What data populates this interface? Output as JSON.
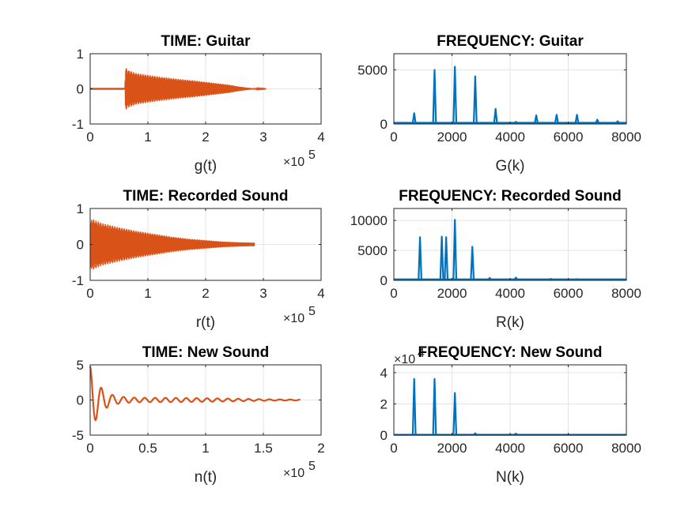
{
  "chart_data": [
    {
      "type": "area",
      "signal": "decaying-oscillation",
      "title": "TIME: Guitar",
      "xlabel": "g(t)",
      "ylabel": "",
      "xlim": [
        0,
        400000
      ],
      "ylim": [
        -1,
        1
      ],
      "xticks": [
        0,
        1,
        2,
        3,
        4
      ],
      "xticklabels": [
        "0",
        "1",
        "2",
        "3",
        "4"
      ],
      "xexponent": "×10",
      "xexponent_power": "5",
      "yticks": [
        -1,
        0,
        1
      ],
      "yticklabels": [
        "-1",
        "0",
        "1"
      ],
      "grid": true,
      "color": "#d95319",
      "envelope": {
        "x": [
          0,
          60000,
          61000,
          64000,
          80000,
          100000,
          120000,
          150000,
          180000,
          210000,
          240000,
          260000,
          280000,
          300000,
          305000
        ],
        "y": [
          0.01,
          0.01,
          0.65,
          0.55,
          0.45,
          0.4,
          0.35,
          0.29,
          0.24,
          0.18,
          0.12,
          0.06,
          0.02,
          0.01,
          0.005
        ]
      }
    },
    {
      "type": "line",
      "signal": "spectrum",
      "title": "FREQUENCY: Guitar",
      "xlabel": "G(k)",
      "ylabel": "",
      "xlim": [
        0,
        8000
      ],
      "ylim": [
        0,
        6500
      ],
      "xticks": [
        0,
        2000,
        4000,
        6000,
        8000
      ],
      "xticklabels": [
        "0",
        "2000",
        "4000",
        "6000",
        "8000"
      ],
      "yticks": [
        0,
        5000
      ],
      "yticklabels": [
        "0",
        "5000"
      ],
      "grid": true,
      "color": "#0072bd",
      "baseline": 100,
      "peaks": {
        "x": [
          700,
          1400,
          2100,
          2800,
          3500,
          4200,
          4900,
          5600,
          6300,
          7000,
          7700
        ],
        "y": [
          1000,
          5000,
          5300,
          4400,
          1400,
          200,
          800,
          850,
          850,
          400,
          250
        ]
      }
    },
    {
      "type": "area",
      "signal": "decaying-oscillation",
      "title": "TIME: Recorded Sound",
      "xlabel": "r(t)",
      "ylabel": "",
      "xlim": [
        0,
        400000
      ],
      "ylim": [
        -1,
        1
      ],
      "xticks": [
        0,
        1,
        2,
        3,
        4
      ],
      "xticklabels": [
        "0",
        "1",
        "2",
        "3",
        "4"
      ],
      "xexponent": "×10",
      "xexponent_power": "5",
      "yticks": [
        -1,
        0,
        1
      ],
      "yticklabels": [
        "-1",
        "0",
        "1"
      ],
      "grid": true,
      "color": "#d95319",
      "envelope": {
        "x": [
          0,
          3000,
          20000,
          50000,
          80000,
          110000,
          140000,
          170000,
          200000,
          230000,
          260000,
          285000
        ],
        "y": [
          0.6,
          0.72,
          0.6,
          0.48,
          0.38,
          0.3,
          0.22,
          0.16,
          0.12,
          0.08,
          0.06,
          0.05
        ]
      }
    },
    {
      "type": "line",
      "signal": "spectrum",
      "title": "FREQUENCY: Recorded Sound",
      "xlabel": "R(k)",
      "ylabel": "",
      "xlim": [
        0,
        8000
      ],
      "ylim": [
        0,
        12000
      ],
      "xticks": [
        0,
        2000,
        4000,
        6000,
        8000
      ],
      "xticklabels": [
        "0",
        "2000",
        "4000",
        "6000",
        "8000"
      ],
      "yticks": [
        0,
        5000,
        10000
      ],
      "yticklabels": [
        "0",
        "5000",
        "10000"
      ],
      "grid": true,
      "color": "#0072bd",
      "baseline": 150,
      "peaks": {
        "x": [
          900,
          1650,
          1800,
          2100,
          2700,
          3300,
          4200,
          5400,
          6300
        ],
        "y": [
          7200,
          7300,
          7200,
          10100,
          5600,
          400,
          450,
          250,
          200
        ]
      }
    },
    {
      "type": "line",
      "signal": "damped-oscillation",
      "title": "TIME: New Sound",
      "xlabel": "n(t)",
      "ylabel": "",
      "xlim": [
        0,
        200000
      ],
      "ylim": [
        -5,
        5
      ],
      "xticks": [
        0,
        0.5,
        1,
        1.5,
        2
      ],
      "xticklabels": [
        "0",
        "0.5",
        "1",
        "1.5",
        "2"
      ],
      "xexponent": "×10",
      "xexponent_power": "5",
      "yticks": [
        -5,
        0,
        5
      ],
      "yticklabels": [
        "-5",
        "0",
        "5"
      ],
      "grid": true,
      "color": "#d95319",
      "start": 4.8,
      "x_end": 182000,
      "residual_amplitude": 0.3
    },
    {
      "type": "line",
      "signal": "spectrum",
      "title": "FREQUENCY: New Sound",
      "xlabel": "N(k)",
      "ylabel": "",
      "xlim": [
        0,
        8000
      ],
      "ylim": [
        0,
        4.5
      ],
      "xticks": [
        0,
        2000,
        4000,
        6000,
        8000
      ],
      "xticklabels": [
        "0",
        "2000",
        "4000",
        "6000",
        "8000"
      ],
      "yticks": [
        0,
        2,
        4
      ],
      "yticklabels": [
        "0",
        "2",
        "4"
      ],
      "yexponent": "×10",
      "yexponent_power": "4",
      "grid": true,
      "color": "#0072bd",
      "baseline": 0.02,
      "peaks": {
        "x": [
          700,
          1400,
          2100,
          2800,
          4200
        ],
        "y": [
          3.6,
          3.6,
          2.7,
          0.12,
          0.1
        ]
      }
    }
  ]
}
